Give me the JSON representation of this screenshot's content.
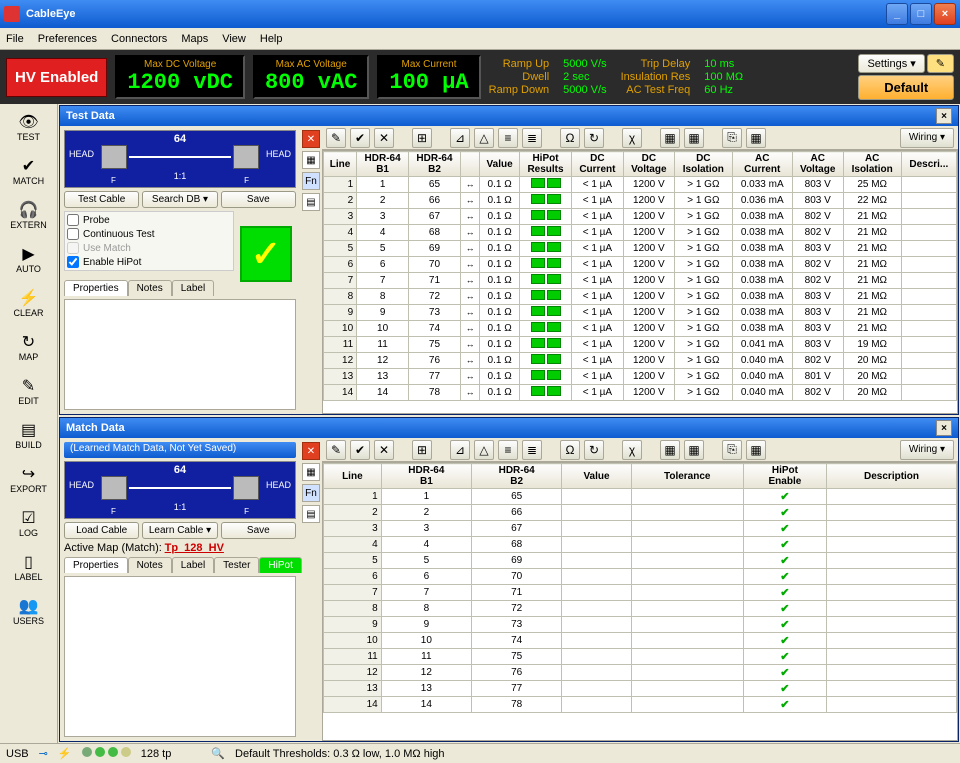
{
  "window": {
    "title": "CableEye",
    "min": "_",
    "max": "□",
    "close": "×"
  },
  "menus": [
    "File",
    "Preferences",
    "Connectors",
    "Maps",
    "View",
    "Help"
  ],
  "hv": {
    "enabled": "HV Enabled",
    "metrics": [
      {
        "label": "Max DC Voltage",
        "value": "1200 vDC"
      },
      {
        "label": "Max AC Voltage",
        "value": "800 vAC"
      },
      {
        "label": "Max Current",
        "value": "100 µA"
      }
    ],
    "params": [
      {
        "k": "Ramp Up",
        "v": "5000 V/s"
      },
      {
        "k": "Trip Delay",
        "v": "10 ms"
      },
      {
        "k": "Dwell",
        "v": "2 sec"
      },
      {
        "k": "Insulation Res",
        "v": "100 MΩ"
      },
      {
        "k": "Ramp Down",
        "v": "5000 V/s"
      },
      {
        "k": "AC Test Freq",
        "v": "60 Hz"
      }
    ],
    "settings": "Settings",
    "default": "Default",
    "edit": "✎"
  },
  "side": [
    {
      "ic": "👁",
      "tx": "TEST"
    },
    {
      "ic": "✔",
      "tx": "MATCH"
    },
    {
      "ic": "🎧",
      "tx": "EXTERN"
    },
    {
      "ic": "▶",
      "tx": "AUTO"
    },
    {
      "ic": "⚡",
      "tx": "CLEAR"
    },
    {
      "ic": "↻",
      "tx": "MAP"
    },
    {
      "ic": "✎",
      "tx": "EDIT"
    },
    {
      "ic": "▤",
      "tx": "BUILD"
    },
    {
      "ic": "↪",
      "tx": "EXPORT"
    },
    {
      "ic": "☑",
      "tx": "LOG"
    },
    {
      "ic": "▯",
      "tx": "LABEL"
    },
    {
      "ic": "👥",
      "tx": "USERS"
    }
  ],
  "test": {
    "title": "Test Data",
    "cable": {
      "num": "64",
      "head_l": "HEAD",
      "head_r": "HEAD",
      "f": "F",
      "ratio": "1:1"
    },
    "btns": [
      "Test Cable",
      "Search DB",
      "Save"
    ],
    "chks": [
      {
        "label": "Probe",
        "checked": false,
        "dis": false
      },
      {
        "label": "Continuous Test",
        "checked": false,
        "dis": false
      },
      {
        "label": "Use Match",
        "checked": false,
        "dis": true
      },
      {
        "label": "Enable HiPot",
        "checked": true,
        "dis": false
      }
    ],
    "tabs": [
      "Properties",
      "Notes",
      "Label"
    ],
    "iconcol": [
      {
        "t": "✕",
        "c": "r"
      },
      {
        "t": "▦",
        "c": ""
      },
      {
        "t": "Fn",
        "c": "b"
      },
      {
        "t": "▤",
        "c": ""
      }
    ],
    "cols": [
      "Line",
      "HDR-64\nB1",
      "HDR-64\nB2",
      "",
      "Value",
      "HiPot\nResults",
      "DC\nCurrent",
      "DC\nVoltage",
      "DC\nIsolation",
      "AC\nCurrent",
      "AC\nVoltage",
      "AC\nIsolation",
      "Descri..."
    ],
    "rows": [
      [
        1,
        1,
        65,
        "↔",
        "0.1 Ω",
        "",
        "< 1 µA",
        "1200 V",
        "> 1 GΩ",
        "0.033 mA",
        "803 V",
        "25 MΩ",
        ""
      ],
      [
        2,
        2,
        66,
        "↔",
        "0.1 Ω",
        "",
        "< 1 µA",
        "1200 V",
        "> 1 GΩ",
        "0.036 mA",
        "803 V",
        "22 MΩ",
        ""
      ],
      [
        3,
        3,
        67,
        "↔",
        "0.1 Ω",
        "",
        "< 1 µA",
        "1200 V",
        "> 1 GΩ",
        "0.038 mA",
        "802 V",
        "21 MΩ",
        ""
      ],
      [
        4,
        4,
        68,
        "↔",
        "0.1 Ω",
        "",
        "< 1 µA",
        "1200 V",
        "> 1 GΩ",
        "0.038 mA",
        "802 V",
        "21 MΩ",
        ""
      ],
      [
        5,
        5,
        69,
        "↔",
        "0.1 Ω",
        "",
        "< 1 µA",
        "1200 V",
        "> 1 GΩ",
        "0.038 mA",
        "803 V",
        "21 MΩ",
        ""
      ],
      [
        6,
        6,
        70,
        "↔",
        "0.1 Ω",
        "",
        "< 1 µA",
        "1200 V",
        "> 1 GΩ",
        "0.038 mA",
        "802 V",
        "21 MΩ",
        ""
      ],
      [
        7,
        7,
        71,
        "↔",
        "0.1 Ω",
        "",
        "< 1 µA",
        "1200 V",
        "> 1 GΩ",
        "0.038 mA",
        "802 V",
        "21 MΩ",
        ""
      ],
      [
        8,
        8,
        72,
        "↔",
        "0.1 Ω",
        "",
        "< 1 µA",
        "1200 V",
        "> 1 GΩ",
        "0.038 mA",
        "803 V",
        "21 MΩ",
        ""
      ],
      [
        9,
        9,
        73,
        "↔",
        "0.1 Ω",
        "",
        "< 1 µA",
        "1200 V",
        "> 1 GΩ",
        "0.038 mA",
        "803 V",
        "21 MΩ",
        ""
      ],
      [
        10,
        10,
        74,
        "↔",
        "0.1 Ω",
        "",
        "< 1 µA",
        "1200 V",
        "> 1 GΩ",
        "0.038 mA",
        "803 V",
        "21 MΩ",
        ""
      ],
      [
        11,
        11,
        75,
        "↔",
        "0.1 Ω",
        "",
        "< 1 µA",
        "1200 V",
        "> 1 GΩ",
        "0.041 mA",
        "803 V",
        "19 MΩ",
        ""
      ],
      [
        12,
        12,
        76,
        "↔",
        "0.1 Ω",
        "",
        "< 1 µA",
        "1200 V",
        "> 1 GΩ",
        "0.040 mA",
        "802 V",
        "20 MΩ",
        ""
      ],
      [
        13,
        13,
        77,
        "↔",
        "0.1 Ω",
        "",
        "< 1 µA",
        "1200 V",
        "> 1 GΩ",
        "0.040 mA",
        "801 V",
        "20 MΩ",
        ""
      ],
      [
        14,
        14,
        78,
        "↔",
        "0.1 Ω",
        "",
        "< 1 µA",
        "1200 V",
        "> 1 GΩ",
        "0.040 mA",
        "802 V",
        "20 MΩ",
        ""
      ]
    ],
    "wiring": "Wiring"
  },
  "match": {
    "title": "Match Data",
    "info": "(Learned Match Data, Not Yet Saved)",
    "cable": {
      "num": "64",
      "head_l": "HEAD",
      "head_r": "HEAD",
      "f": "F",
      "ratio": "1:1"
    },
    "btns": [
      "Load Cable",
      "Learn Cable",
      "Save"
    ],
    "maplbl": "Active Map (Match):",
    "mapval": "Tp_128_HV",
    "tabs": [
      "Properties",
      "Notes",
      "Label",
      "Tester",
      "HiPot"
    ],
    "iconcol": [
      {
        "t": "✕",
        "c": "r"
      },
      {
        "t": "▦",
        "c": ""
      },
      {
        "t": "Fn",
        "c": "b"
      },
      {
        "t": "▤",
        "c": ""
      }
    ],
    "cols": [
      "Line",
      "HDR-64\nB1",
      "HDR-64\nB2",
      "Value",
      "Tolerance",
      "HiPot\nEnable",
      "Description"
    ],
    "rows": [
      [
        1,
        1,
        65,
        "",
        "",
        "✔",
        ""
      ],
      [
        2,
        2,
        66,
        "",
        "",
        "✔",
        ""
      ],
      [
        3,
        3,
        67,
        "",
        "",
        "✔",
        ""
      ],
      [
        4,
        4,
        68,
        "",
        "",
        "✔",
        ""
      ],
      [
        5,
        5,
        69,
        "",
        "",
        "✔",
        ""
      ],
      [
        6,
        6,
        70,
        "",
        "",
        "✔",
        ""
      ],
      [
        7,
        7,
        71,
        "",
        "",
        "✔",
        ""
      ],
      [
        8,
        8,
        72,
        "",
        "",
        "✔",
        ""
      ],
      [
        9,
        9,
        73,
        "",
        "",
        "✔",
        ""
      ],
      [
        10,
        10,
        74,
        "",
        "",
        "✔",
        ""
      ],
      [
        11,
        11,
        75,
        "",
        "",
        "✔",
        ""
      ],
      [
        12,
        12,
        76,
        "",
        "",
        "✔",
        ""
      ],
      [
        13,
        13,
        77,
        "",
        "",
        "✔",
        ""
      ],
      [
        14,
        14,
        78,
        "",
        "",
        "✔",
        ""
      ]
    ],
    "wiring": "Wiring"
  },
  "status": {
    "left": "USB",
    "tp": "128 tp",
    "thresh": "Default Thresholds: 0.3 Ω low, 1.0 MΩ high",
    "dots": [
      "#7a7",
      "#4b4",
      "#4b4",
      "#cc8"
    ]
  },
  "toolbar_icons": [
    "✎",
    "✔",
    "✕",
    "",
    "⊞",
    "",
    "⊿",
    "△",
    "≡",
    "≣",
    "",
    "Ω",
    "↻",
    "",
    "χ",
    "",
    "▦",
    "▦",
    "",
    "⎘",
    "▦",
    "",
    "Wiring"
  ]
}
